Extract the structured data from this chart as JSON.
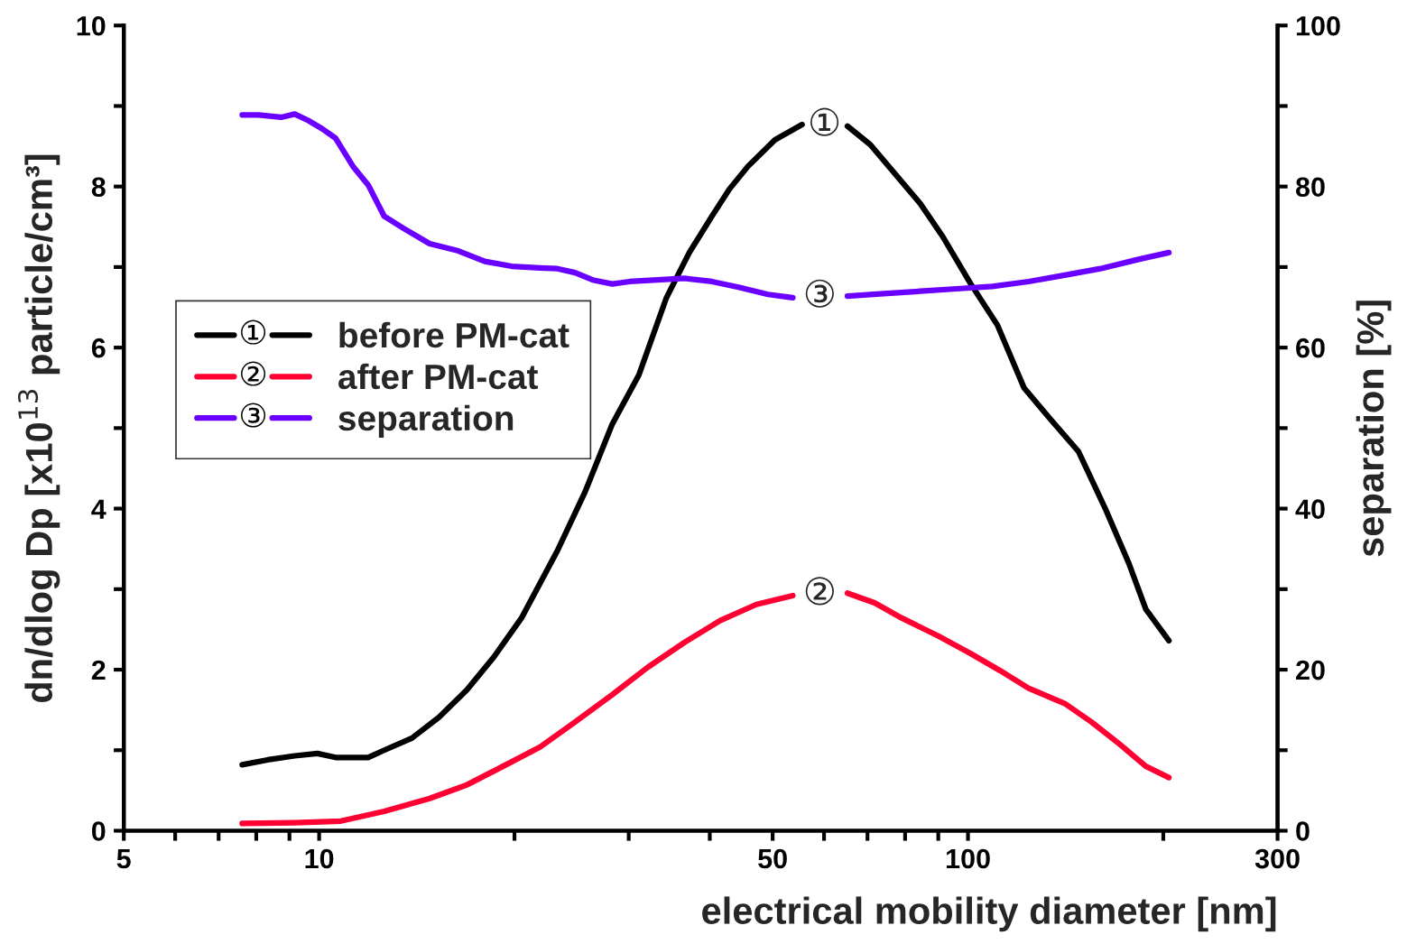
{
  "chart_data": {
    "type": "line",
    "xlabel": "electrical mobility diameter [nm]",
    "ylabel": "dn/dlog Dp [x10$^{13}$ particle/cm³]",
    "y2label": "separation [%]",
    "log": "x",
    "xlim": [
      5,
      300
    ],
    "xticks": [
      5,
      {
        "value": 6,
        "label": null
      },
      {
        "value": 7,
        "label": null
      },
      {
        "value": 8,
        "label": null
      },
      {
        "value": 9,
        "label": null
      },
      10,
      {
        "value": 20,
        "label": null
      },
      {
        "value": 30,
        "label": null
      },
      {
        "value": 40,
        "label": null
      },
      50,
      {
        "value": 60,
        "label": null
      },
      {
        "value": 70,
        "label": null
      },
      {
        "value": 80,
        "label": null
      },
      {
        "value": 90,
        "label": null
      },
      100,
      {
        "value": 200,
        "label": null
      },
      300
    ],
    "ylim": [
      0,
      10
    ],
    "yticks": [
      0,
      {
        "value": 1,
        "label": null
      },
      2,
      {
        "value": 3,
        "label": null
      },
      4,
      {
        "value": 5,
        "label": null
      },
      6,
      {
        "value": 7,
        "label": null
      },
      8,
      {
        "value": 9,
        "label": null
      },
      10
    ],
    "y2lim": [
      0,
      100
    ],
    "y2ticks": [
      0,
      {
        "value": 10,
        "label": null
      },
      20,
      {
        "value": 30,
        "label": null
      },
      40,
      {
        "value": 50,
        "label": null
      },
      60,
      {
        "value": 70,
        "label": null
      },
      80,
      {
        "value": 90,
        "label": null
      },
      100
    ],
    "grid": false,
    "legend": "left",
    "series": [
      {
        "name": "before PM-cat",
        "color": "#000000",
        "x": [
          7.61,
          8.33,
          9.17,
          9.94,
          10.6,
          11.9,
          12.6,
          13.9,
          15.3,
          16.9,
          18.6,
          20.5,
          23.3,
          25.7,
          28.3,
          31.1,
          34.3,
          37.2,
          40.3,
          42.9,
          45.8,
          50.4,
          55.5,
          60.1,
          65.2,
          70.7,
          76.6,
          84.4,
          91.4,
          101,
          111,
          122,
          134,
          148,
          163,
          177,
          188,
          204
        ],
        "values": [
          0.82,
          0.88,
          0.93,
          0.96,
          0.91,
          0.91,
          1.0,
          1.15,
          1.41,
          1.75,
          2.16,
          2.64,
          3.48,
          4.21,
          5.05,
          5.66,
          6.62,
          7.18,
          7.63,
          7.97,
          8.25,
          8.58,
          8.77,
          null,
          8.75,
          8.52,
          8.19,
          7.79,
          7.38,
          6.79,
          6.28,
          5.5,
          5.11,
          4.71,
          3.99,
          3.32,
          2.75,
          2.36
        ]
      },
      {
        "name": "after PM-cat",
        "color": "#ff0033",
        "x": [
          7.61,
          9.17,
          10.8,
          12.6,
          14.8,
          16.9,
          19.2,
          21.9,
          24.8,
          28.3,
          32.1,
          36.6,
          41.5,
          47.2,
          53.7,
          59.1,
          65.2,
          71.8,
          79.1,
          89.9,
          101,
          112,
          124,
          141,
          155,
          171,
          188,
          204
        ],
        "values": [
          0.09,
          0.1,
          0.12,
          0.24,
          0.4,
          0.57,
          0.8,
          1.04,
          1.35,
          1.69,
          2.03,
          2.34,
          2.61,
          2.81,
          2.92,
          null,
          2.95,
          2.83,
          2.64,
          2.42,
          2.2,
          1.99,
          1.77,
          1.58,
          1.35,
          1.08,
          0.8,
          0.66
        ]
      },
      {
        "name": "separation",
        "color": "#6a00ff",
        "axis": "y2",
        "x": [
          7.61,
          8.06,
          8.74,
          9.17,
          9.62,
          10.1,
          10.6,
          11.3,
          11.9,
          12.6,
          13.5,
          14.8,
          16.4,
          18.0,
          19.8,
          21.9,
          23.3,
          24.8,
          26.4,
          28.3,
          30.1,
          33.2,
          36.6,
          40.3,
          44.3,
          49.2,
          53.7,
          59.1,
          65.2,
          74.1,
          84.4,
          96.0,
          109,
          124,
          141,
          160,
          182,
          204
        ],
        "values": [
          88.9,
          88.9,
          88.6,
          89.0,
          88.2,
          87.2,
          86.0,
          82.4,
          80.2,
          76.3,
          74.8,
          72.9,
          72.0,
          70.7,
          70.1,
          69.9,
          69.8,
          69.3,
          68.4,
          67.9,
          68.2,
          68.4,
          68.6,
          68.2,
          67.5,
          66.6,
          66.2,
          null,
          66.4,
          66.7,
          67.0,
          67.3,
          67.6,
          68.2,
          69.0,
          69.8,
          70.9,
          71.8
        ]
      }
    ],
    "annotations": [
      "①",
      "②",
      "③"
    ]
  }
}
